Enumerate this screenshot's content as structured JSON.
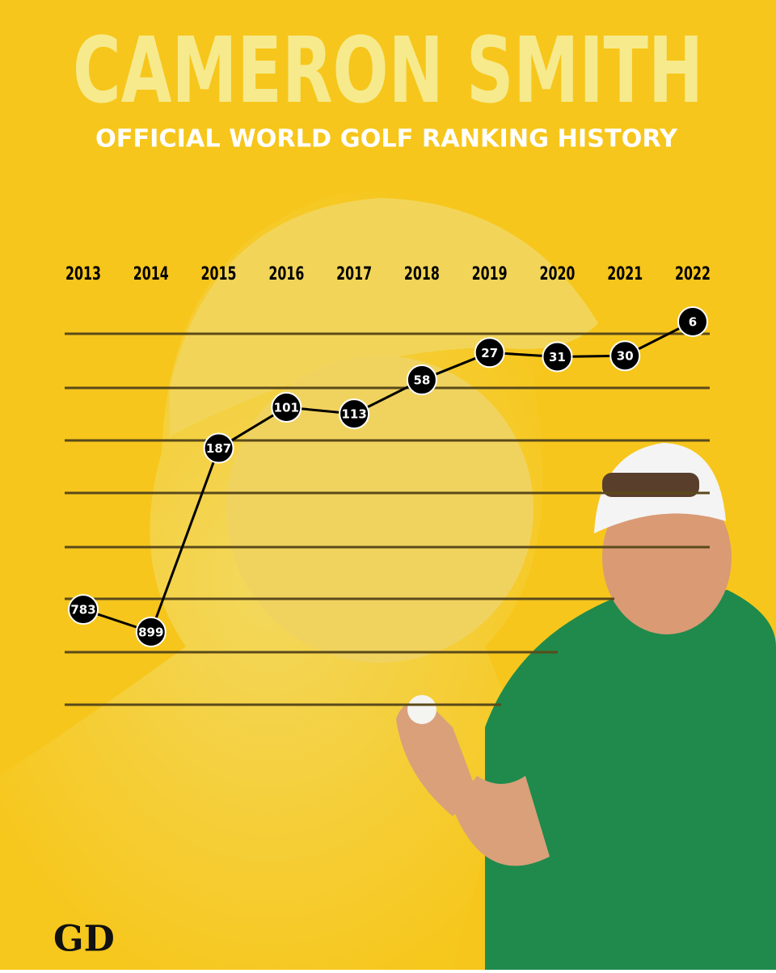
{
  "title": "CAMERON SMITH",
  "logo": "GD",
  "chart_data": {
    "type": "line",
    "title": "OFFICIAL WORLD GOLF RANKING HISTORY",
    "categories": [
      "2013",
      "2014",
      "2015",
      "2016",
      "2017",
      "2018",
      "2019",
      "2020",
      "2021",
      "2022"
    ],
    "values": [
      783,
      899,
      187,
      101,
      113,
      58,
      27,
      31,
      30,
      6
    ],
    "y_inverted": true,
    "color": "#000000"
  }
}
